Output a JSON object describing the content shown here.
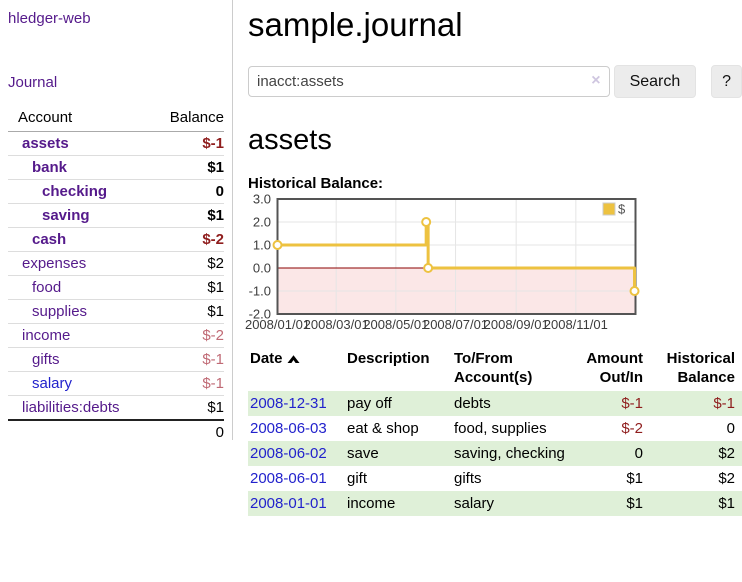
{
  "sidebar": {
    "brand": "hledger-web",
    "nav": {
      "journal": "Journal"
    },
    "accounts_table": {
      "headers": {
        "account": "Account",
        "balance": "Balance"
      },
      "rows": [
        {
          "name": "assets",
          "balance": "$-1"
        },
        {
          "name": "bank",
          "balance": "$1"
        },
        {
          "name": "checking",
          "balance": "0"
        },
        {
          "name": "saving",
          "balance": "$1"
        },
        {
          "name": "cash",
          "balance": "$-2"
        },
        {
          "name": "expenses",
          "balance": "$2"
        },
        {
          "name": "food",
          "balance": "$1"
        },
        {
          "name": "supplies",
          "balance": "$1"
        },
        {
          "name": "income",
          "balance": "$-2"
        },
        {
          "name": "gifts",
          "balance": "$-1"
        },
        {
          "name": "salary",
          "balance": "$-1"
        },
        {
          "name": "liabilities:debts",
          "balance": "$1"
        }
      ],
      "total": "0"
    }
  },
  "header": {
    "title": "sample.journal"
  },
  "search": {
    "value": "inacct:assets",
    "clear_icon": "×",
    "button": "Search",
    "help_button": "?"
  },
  "account_page": {
    "title": "assets"
  },
  "chart_data": {
    "type": "line",
    "title": "Historical Balance:",
    "step": true,
    "series": [
      {
        "name": "$",
        "color": "#edc240",
        "points": [
          [
            "2008-01-01",
            1
          ],
          [
            "2008-06-01",
            2
          ],
          [
            "2008-06-03",
            0
          ],
          [
            "2008-12-31",
            -1
          ]
        ]
      }
    ],
    "xlim": [
      "2008-01-01",
      "2009-01-01"
    ],
    "ylim": [
      -2,
      3
    ],
    "yticks": [
      3,
      2,
      1,
      0,
      -1,
      -2
    ],
    "xticklabels": [
      "2008/01/01",
      "2008/03/01",
      "2008/05/01",
      "2008/07/01",
      "2008/09/01",
      "2008/11/01"
    ],
    "legend": {
      "label": "$",
      "position": "top-right"
    },
    "grid": true,
    "zero_line_color": "#8b0000",
    "negative_fill": "#fbe7e7",
    "border_color": "#545454"
  },
  "register_table": {
    "headers": {
      "date": "Date",
      "description": "Description",
      "tofrom1": "To/From",
      "tofrom2": "Account(s)",
      "amount1": "Amount",
      "amount2": "Out/In",
      "hist1": "Historical",
      "hist2": "Balance"
    },
    "rows": [
      {
        "date": "2008-12-31",
        "description": "pay off",
        "accounts": "debts",
        "amount": "$-1",
        "balance": "$-1"
      },
      {
        "date": "2008-06-03",
        "description": "eat & shop",
        "accounts": "food, supplies",
        "amount": "$-2",
        "balance": "0"
      },
      {
        "date": "2008-06-02",
        "description": "save",
        "accounts": "saving, checking",
        "amount": "0",
        "balance": "$2"
      },
      {
        "date": "2008-06-01",
        "description": "gift",
        "accounts": "gifts",
        "amount": "$1",
        "balance": "$2"
      },
      {
        "date": "2008-01-01",
        "description": "income",
        "accounts": "salary",
        "amount": "$1",
        "balance": "$1"
      }
    ]
  }
}
